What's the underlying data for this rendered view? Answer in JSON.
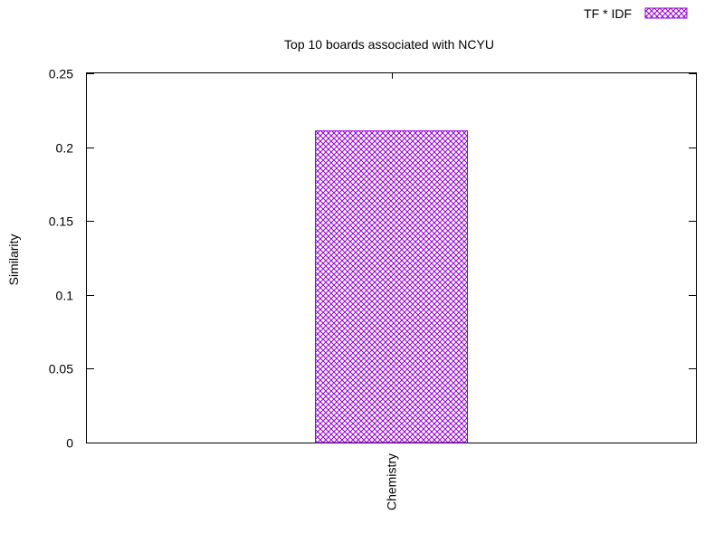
{
  "chart_data": {
    "type": "bar",
    "title": "Top 10 boards associated with NCYU",
    "xlabel": "",
    "ylabel": "Similarity",
    "categories": [
      "Chemistry"
    ],
    "series": [
      {
        "name": "TF * IDF",
        "values": [
          0.211
        ],
        "color": "#9400d3",
        "pattern": "crosshatch"
      }
    ],
    "ylim": [
      0,
      0.25
    ],
    "yticks": [
      "0",
      "0.05",
      "0.1",
      "0.15",
      "0.2",
      "0.25"
    ],
    "grid": false,
    "legend_position": "top-right"
  }
}
